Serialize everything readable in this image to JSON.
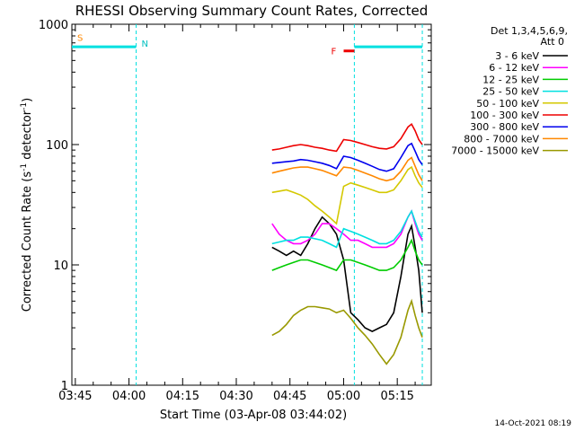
{
  "chart_data": {
    "type": "line",
    "title": "RHESSI Observing Summary Count Rates, Corrected",
    "xlabel": "Start Time (03-Apr-08 03:44:02)",
    "ylabel_main": "Corrected Count Rate (s",
    "ylabel_sup1": "-1",
    "ylabel_mid": " detector",
    "ylabel_sup2": "-1",
    "ylabel_end": ")",
    "y_scale": "log",
    "ylim": [
      1,
      1000
    ],
    "xlim": [
      "03:44:02",
      "05:24:30"
    ],
    "x_ticks": [
      "03:45",
      "04:00",
      "04:15",
      "04:30",
      "04:45",
      "05:00",
      "05:15"
    ],
    "y_ticks": [
      "1",
      "10",
      "100",
      "1000"
    ],
    "legend_header_1": "Det 1,3,4,5,6,9,",
    "legend_header_2": "Att 0",
    "date_stamp": "14-Oct-2021 08:19",
    "series": [
      {
        "name": "3 - 6 keV",
        "color": "#000000",
        "points": [
          [
            "04:40",
            14
          ],
          [
            "04:42",
            13
          ],
          [
            "04:44",
            12
          ],
          [
            "04:46",
            13
          ],
          [
            "04:48",
            12
          ],
          [
            "04:50",
            15
          ],
          [
            "04:52",
            20
          ],
          [
            "04:54",
            25
          ],
          [
            "04:56",
            22
          ],
          [
            "04:58",
            18
          ],
          [
            "05:00",
            11
          ],
          [
            "05:02",
            4
          ],
          [
            "05:04",
            3.5
          ],
          [
            "05:06",
            3
          ],
          [
            "05:08",
            2.8
          ],
          [
            "05:10",
            3
          ],
          [
            "05:12",
            3.2
          ],
          [
            "05:14",
            4
          ],
          [
            "05:16",
            8
          ],
          [
            "05:18",
            18
          ],
          [
            "05:19",
            21
          ],
          [
            "05:20",
            14
          ],
          [
            "05:21",
            9
          ],
          [
            "05:22",
            4
          ]
        ]
      },
      {
        "name": "6 - 12 keV",
        "color": "#ff00ff",
        "points": [
          [
            "04:40",
            22
          ],
          [
            "04:42",
            18
          ],
          [
            "04:44",
            16
          ],
          [
            "04:46",
            15
          ],
          [
            "04:48",
            15
          ],
          [
            "04:50",
            16
          ],
          [
            "04:52",
            18
          ],
          [
            "04:54",
            22
          ],
          [
            "04:56",
            22
          ],
          [
            "04:58",
            20
          ],
          [
            "05:00",
            18
          ],
          [
            "05:02",
            16
          ],
          [
            "05:04",
            16
          ],
          [
            "05:06",
            15
          ],
          [
            "05:08",
            14
          ],
          [
            "05:10",
            14
          ],
          [
            "05:12",
            14
          ],
          [
            "05:14",
            15
          ],
          [
            "05:16",
            18
          ],
          [
            "05:18",
            25
          ],
          [
            "05:19",
            28
          ],
          [
            "05:20",
            22
          ],
          [
            "05:21",
            18
          ],
          [
            "05:22",
            16
          ]
        ]
      },
      {
        "name": "12 - 25 keV",
        "color": "#00cc00",
        "points": [
          [
            "04:40",
            9
          ],
          [
            "04:42",
            9.5
          ],
          [
            "04:44",
            10
          ],
          [
            "04:46",
            10.5
          ],
          [
            "04:48",
            11
          ],
          [
            "04:50",
            11
          ],
          [
            "04:52",
            10.5
          ],
          [
            "04:54",
            10
          ],
          [
            "04:56",
            9.5
          ],
          [
            "04:58",
            9
          ],
          [
            "05:00",
            11
          ],
          [
            "05:02",
            11
          ],
          [
            "05:04",
            10.5
          ],
          [
            "05:06",
            10
          ],
          [
            "05:08",
            9.5
          ],
          [
            "05:10",
            9
          ],
          [
            "05:12",
            9
          ],
          [
            "05:14",
            9.5
          ],
          [
            "05:16",
            11
          ],
          [
            "05:18",
            14
          ],
          [
            "05:19",
            16
          ],
          [
            "05:20",
            13
          ],
          [
            "05:21",
            11
          ],
          [
            "05:22",
            10
          ]
        ]
      },
      {
        "name": "25 - 50 keV",
        "color": "#00e0e0",
        "points": [
          [
            "04:40",
            15
          ],
          [
            "04:42",
            15.5
          ],
          [
            "04:44",
            16
          ],
          [
            "04:46",
            16
          ],
          [
            "04:48",
            17
          ],
          [
            "04:50",
            17
          ],
          [
            "04:52",
            16.5
          ],
          [
            "04:54",
            16
          ],
          [
            "04:56",
            15
          ],
          [
            "04:58",
            14
          ],
          [
            "05:00",
            20
          ],
          [
            "05:02",
            19
          ],
          [
            "05:04",
            18
          ],
          [
            "05:06",
            17
          ],
          [
            "05:08",
            16
          ],
          [
            "05:10",
            15
          ],
          [
            "05:12",
            15
          ],
          [
            "05:14",
            16
          ],
          [
            "05:16",
            19
          ],
          [
            "05:18",
            25
          ],
          [
            "05:19",
            28
          ],
          [
            "05:20",
            23
          ],
          [
            "05:21",
            19
          ],
          [
            "05:22",
            17
          ]
        ]
      },
      {
        "name": "50 - 100 keV",
        "color": "#d4c800",
        "points": [
          [
            "04:40",
            40
          ],
          [
            "04:42",
            41
          ],
          [
            "04:44",
            42
          ],
          [
            "04:46",
            40
          ],
          [
            "04:48",
            38
          ],
          [
            "04:50",
            35
          ],
          [
            "04:52",
            31
          ],
          [
            "04:54",
            28
          ],
          [
            "04:56",
            25
          ],
          [
            "04:58",
            22
          ],
          [
            "05:00",
            45
          ],
          [
            "05:02",
            48
          ],
          [
            "05:04",
            46
          ],
          [
            "05:06",
            44
          ],
          [
            "05:08",
            42
          ],
          [
            "05:10",
            40
          ],
          [
            "05:12",
            40
          ],
          [
            "05:14",
            42
          ],
          [
            "05:16",
            50
          ],
          [
            "05:18",
            62
          ],
          [
            "05:19",
            65
          ],
          [
            "05:20",
            55
          ],
          [
            "05:21",
            48
          ],
          [
            "05:22",
            44
          ]
        ]
      },
      {
        "name": "100 - 300 keV",
        "color": "#ee0000",
        "points": [
          [
            "04:40",
            90
          ],
          [
            "04:42",
            92
          ],
          [
            "04:44",
            95
          ],
          [
            "04:46",
            98
          ],
          [
            "04:48",
            100
          ],
          [
            "04:50",
            98
          ],
          [
            "04:52",
            95
          ],
          [
            "04:54",
            93
          ],
          [
            "04:56",
            90
          ],
          [
            "04:58",
            88
          ],
          [
            "05:00",
            110
          ],
          [
            "05:02",
            108
          ],
          [
            "05:04",
            104
          ],
          [
            "05:06",
            100
          ],
          [
            "05:08",
            96
          ],
          [
            "05:10",
            93
          ],
          [
            "05:12",
            92
          ],
          [
            "05:14",
            96
          ],
          [
            "05:16",
            112
          ],
          [
            "05:18",
            140
          ],
          [
            "05:19",
            148
          ],
          [
            "05:20",
            130
          ],
          [
            "05:21",
            110
          ],
          [
            "05:22",
            100
          ]
        ]
      },
      {
        "name": "300 - 800 keV",
        "color": "#0000ee",
        "points": [
          [
            "04:40",
            70
          ],
          [
            "04:42",
            71
          ],
          [
            "04:44",
            72
          ],
          [
            "04:46",
            73
          ],
          [
            "04:48",
            75
          ],
          [
            "04:50",
            74
          ],
          [
            "04:52",
            72
          ],
          [
            "04:54",
            70
          ],
          [
            "04:56",
            67
          ],
          [
            "04:58",
            63
          ],
          [
            "05:00",
            80
          ],
          [
            "05:02",
            78
          ],
          [
            "05:04",
            74
          ],
          [
            "05:06",
            70
          ],
          [
            "05:08",
            66
          ],
          [
            "05:10",
            62
          ],
          [
            "05:12",
            60
          ],
          [
            "05:14",
            63
          ],
          [
            "05:16",
            78
          ],
          [
            "05:18",
            98
          ],
          [
            "05:19",
            102
          ],
          [
            "05:20",
            88
          ],
          [
            "05:21",
            75
          ],
          [
            "05:22",
            68
          ]
        ]
      },
      {
        "name": "800 - 7000 keV",
        "color": "#ff8800",
        "points": [
          [
            "04:40",
            58
          ],
          [
            "04:42",
            60
          ],
          [
            "04:44",
            62
          ],
          [
            "04:46",
            64
          ],
          [
            "04:48",
            65
          ],
          [
            "04:50",
            65
          ],
          [
            "04:52",
            63
          ],
          [
            "04:54",
            61
          ],
          [
            "04:56",
            58
          ],
          [
            "04:58",
            55
          ],
          [
            "05:00",
            65
          ],
          [
            "05:02",
            64
          ],
          [
            "05:04",
            61
          ],
          [
            "05:06",
            58
          ],
          [
            "05:08",
            55
          ],
          [
            "05:10",
            52
          ],
          [
            "05:12",
            50
          ],
          [
            "05:14",
            52
          ],
          [
            "05:16",
            60
          ],
          [
            "05:18",
            74
          ],
          [
            "05:19",
            78
          ],
          [
            "05:20",
            66
          ],
          [
            "05:21",
            56
          ],
          [
            "05:22",
            50
          ]
        ]
      },
      {
        "name": "7000 - 15000 keV",
        "color": "#999900",
        "points": [
          [
            "04:40",
            2.6
          ],
          [
            "04:42",
            2.8
          ],
          [
            "04:44",
            3.2
          ],
          [
            "04:46",
            3.8
          ],
          [
            "04:48",
            4.2
          ],
          [
            "04:50",
            4.5
          ],
          [
            "04:52",
            4.5
          ],
          [
            "04:54",
            4.4
          ],
          [
            "04:56",
            4.3
          ],
          [
            "04:58",
            4.0
          ],
          [
            "05:00",
            4.2
          ],
          [
            "05:02",
            3.6
          ],
          [
            "05:04",
            3.0
          ],
          [
            "05:06",
            2.6
          ],
          [
            "05:08",
            2.2
          ],
          [
            "05:10",
            1.8
          ],
          [
            "05:12",
            1.5
          ],
          [
            "05:14",
            1.8
          ],
          [
            "05:16",
            2.5
          ],
          [
            "05:18",
            4.2
          ],
          [
            "05:19",
            5
          ],
          [
            "05:20",
            3.8
          ],
          [
            "05:21",
            3
          ],
          [
            "05:22",
            2.5
          ]
        ]
      }
    ],
    "spacecraft_intervals": {
      "color": "#00e0e0",
      "segments": [
        [
          "03:44:02",
          "04:02"
        ],
        [
          "05:03",
          "05:22"
        ]
      ],
      "level": 650,
      "boundaries": [
        "04:02",
        "05:03",
        "05:22"
      ]
    },
    "flare_interval": {
      "color": "#ee0000",
      "start": "04:58",
      "end": "05:01",
      "level": 600
    },
    "markers": [
      {
        "label": "S",
        "color": "#ff8800",
        "at": "03:44:02",
        "level": 780
      },
      {
        "label": "N",
        "color": "#00c0c0",
        "at": "04:02",
        "level": 700
      },
      {
        "label": "F",
        "color": "#ee0000",
        "at": "04:58",
        "level": 600
      }
    ]
  }
}
